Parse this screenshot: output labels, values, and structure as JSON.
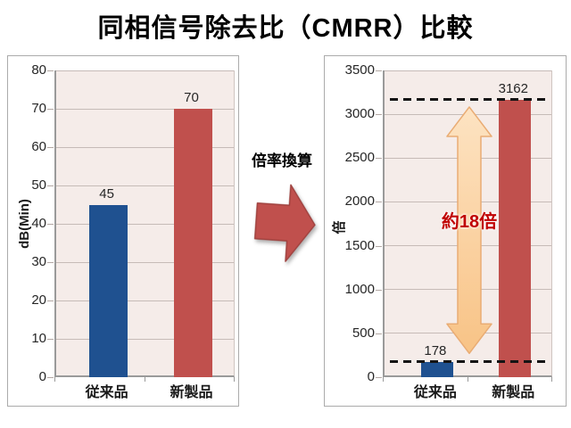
{
  "title": "同相信号除去比（CMRR）比較",
  "middle": {
    "label": "倍率換算",
    "arrow_icon": "block-arrow-right",
    "arrow_color": "#C0504D"
  },
  "colors": {
    "bar_blue": "#1F5190",
    "bar_red": "#C0504D",
    "plot_background": "#F5ECE9",
    "gridline": "#C6BBB7",
    "ratio_text": "#C00000",
    "peach_arrow_light": "#FDE3C2",
    "peach_arrow_dark": "#F8C386"
  },
  "chart_data": [
    {
      "type": "bar",
      "title": "",
      "xlabel": "",
      "ylabel": "dB(Min)",
      "categories": [
        "従来品",
        "新製品"
      ],
      "values": [
        45,
        70
      ],
      "value_labels": [
        "45",
        "70"
      ],
      "bar_colors": [
        "#1F5190",
        "#C0504D"
      ],
      "ylim": [
        0,
        80
      ],
      "ytick_step": 10,
      "grid": true,
      "legend": "none"
    },
    {
      "type": "bar",
      "title": "",
      "xlabel": "",
      "ylabel": "倍",
      "categories": [
        "従来品",
        "新製品"
      ],
      "values": [
        178,
        3162
      ],
      "value_labels": [
        "178",
        "3162"
      ],
      "bar_colors": [
        "#1F5190",
        "#C0504D"
      ],
      "ylim": [
        0,
        3500
      ],
      "ytick_step": 500,
      "grid": true,
      "legend": "none",
      "annotations": {
        "dashed_levels": [
          178,
          3162
        ],
        "arrow": "double-headed-vertical",
        "arrow_span": [
          178,
          3162
        ],
        "ratio_label": "約18倍",
        "ratio_label_color": "#C00000"
      }
    }
  ]
}
